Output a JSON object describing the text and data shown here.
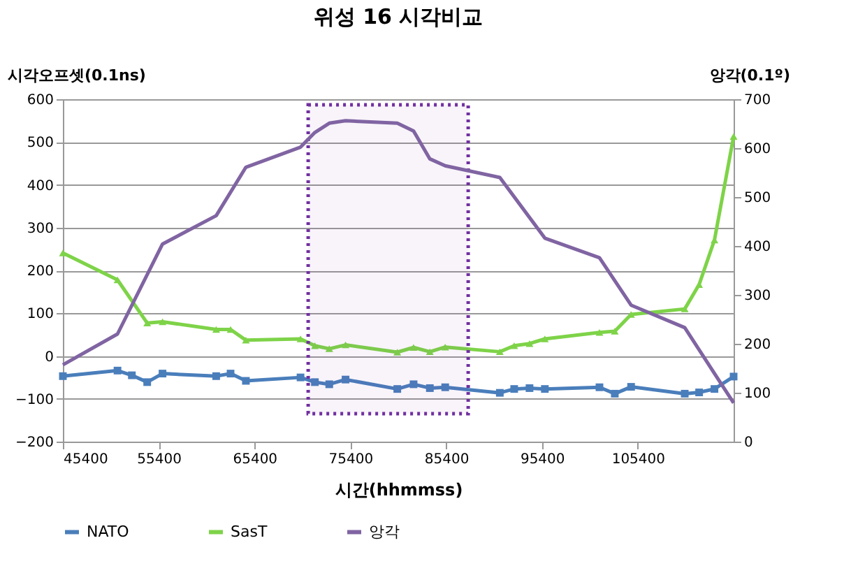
{
  "chart_data": {
    "type": "line",
    "title": "위성 16 시각비교",
    "xlabel": "시간(hhmmss)",
    "ylabel": "시각오프셋(0.1ns)",
    "y2label": "앙각(0.1º)",
    "xlim": [
      45400,
      115400
    ],
    "xticks": [
      45400,
      55400,
      65400,
      75400,
      85400,
      95400,
      105400
    ],
    "ylim": [
      -200,
      600
    ],
    "yticks": [
      -200,
      -100,
      0,
      100,
      200,
      300,
      400,
      500,
      600
    ],
    "y2lim": [
      0,
      700
    ],
    "y2ticks": [
      0,
      100,
      200,
      300,
      400,
      500,
      600,
      700
    ],
    "grid": "y",
    "legend": "bottom",
    "line_style": "solid",
    "series": [
      {
        "name": "NATO",
        "color": "#4a7ebb",
        "marker": "square",
        "x": [
          45400,
          51100,
          52600,
          54200,
          55800,
          61400,
          62900,
          64500,
          70200,
          71700,
          73200,
          74900,
          80300,
          82000,
          83700,
          85300,
          91000,
          92500,
          94100,
          95700,
          101400,
          103000,
          104700,
          110300,
          111800,
          113400,
          115400
        ],
        "values": [
          -47,
          -34,
          -45,
          -61,
          -41,
          -47,
          -41,
          -58,
          -50,
          -61,
          -66,
          -55,
          -77,
          -66,
          -75,
          -73,
          -86,
          -77,
          -75,
          -77,
          -73,
          -88,
          -72,
          -88,
          -85,
          -77,
          -48
        ]
      },
      {
        "name": "SasT",
        "color": "#7ed348",
        "marker": "triangle",
        "x": [
          45400,
          51100,
          54200,
          55800,
          61400,
          62900,
          64500,
          70200,
          71700,
          73200,
          74900,
          80300,
          82000,
          83700,
          85300,
          91000,
          92500,
          94100,
          95700,
          101400,
          103000,
          104700,
          110300,
          111800,
          113400,
          115400
        ],
        "values": [
          241,
          178,
          77,
          80,
          62,
          62,
          37,
          40,
          24,
          17,
          26,
          9,
          20,
          10,
          21,
          10,
          24,
          29,
          40,
          55,
          58,
          97,
          110,
          167,
          271,
          513
        ]
      },
      {
        "name": "앙각",
        "color": "#8064a2",
        "marker": "none",
        "axis": "y2",
        "x": [
          45400,
          51100,
          55800,
          61400,
          64500,
          70200,
          71700,
          73200,
          74900,
          80300,
          82000,
          83700,
          85300,
          91000,
          95700,
          101400,
          104700,
          110300,
          115400
        ],
        "values": [
          157,
          220,
          404,
          462,
          561,
          602,
          632,
          651,
          656,
          651,
          635,
          578,
          564,
          540,
          416,
          376,
          279,
          233,
          79
        ]
      }
    ],
    "bands": [
      {
        "axis": "x",
        "from": 71000,
        "to": 87700,
        "color": "#7030a0"
      }
    ]
  }
}
